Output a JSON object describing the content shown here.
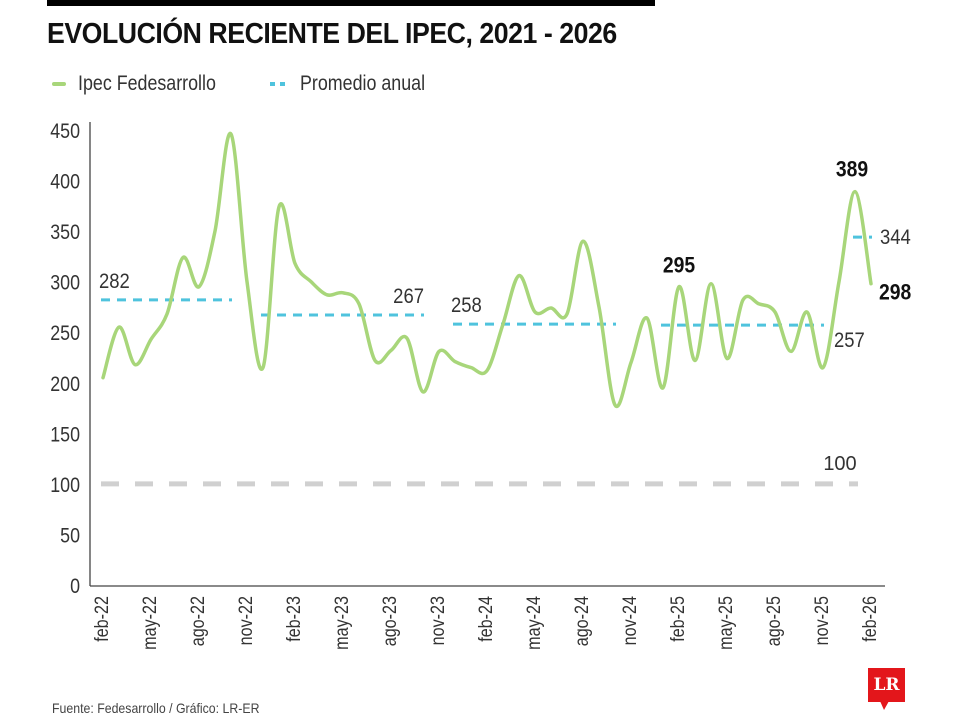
{
  "title": "EVOLUCIÓN RECIENTE DEL IPEC, 2021 - 2026",
  "legend": [
    {
      "label": "Ipec Fedesarrollo",
      "style": "solid",
      "color": "#a8d67a"
    },
    {
      "label": "Promedio anual",
      "style": "dashed",
      "color": "#4fc3dd"
    }
  ],
  "footer": "Fuente: Fedesarrollo / Gráfico: LR-ER",
  "logo": "LR",
  "colors": {
    "series": "#a8d67a",
    "average": "#4fc3dd",
    "reference": "#d0d0d0",
    "logo": "#e3161b"
  },
  "chart_data": {
    "type": "line",
    "title": "EVOLUCIÓN RECIENTE DEL IPEC, 2021 - 2026",
    "xlabel": "",
    "ylabel": "",
    "ylim": [
      0,
      450
    ],
    "yticks": [
      0,
      50,
      100,
      150,
      200,
      250,
      300,
      350,
      400,
      450
    ],
    "grid": false,
    "legend_position": "top-left",
    "xtick_labels": [
      "feb-22",
      "may-22",
      "ago-22",
      "nov-22",
      "feb-23",
      "may-23",
      "ago-23",
      "nov-23",
      "feb-24",
      "may-24",
      "ago-24",
      "nov-24",
      "feb-25",
      "may-25",
      "ago-25",
      "nov-25",
      "feb-26"
    ],
    "xtick_every_months": 3,
    "x": [
      "feb-22",
      "mar-22",
      "abr-22",
      "may-22",
      "jun-22",
      "jul-22",
      "ago-22",
      "sep-22",
      "oct-22",
      "nov-22",
      "dic-22",
      "ene-23",
      "feb-23",
      "mar-23",
      "abr-23",
      "may-23",
      "jun-23",
      "jul-23",
      "ago-23",
      "sep-23",
      "oct-23",
      "nov-23",
      "dic-23",
      "ene-24",
      "feb-24",
      "mar-24",
      "abr-24",
      "may-24",
      "jun-24",
      "jul-24",
      "ago-24",
      "sep-24",
      "oct-24",
      "nov-24",
      "dic-24",
      "ene-25",
      "feb-25",
      "mar-25",
      "abr-25",
      "may-25",
      "jun-25",
      "jul-25",
      "ago-25",
      "sep-25",
      "oct-25",
      "nov-25",
      "dic-25",
      "ene-26",
      "feb-26"
    ],
    "series": [
      {
        "name": "Ipec Fedesarrollo",
        "values": [
          205,
          255,
          218,
          243,
          268,
          324,
          295,
          350,
          446,
          300,
          215,
          374,
          318,
          300,
          287,
          289,
          278,
          222,
          232,
          244,
          191,
          231,
          221,
          215,
          212,
          258,
          306,
          270,
          274,
          268,
          340,
          275,
          178,
          220,
          264,
          195,
          295,
          222,
          298,
          224,
          282,
          278,
          270,
          231,
          270,
          215,
          300,
          389,
          298
        ]
      }
    ],
    "annual_averages": [
      {
        "label": "282",
        "value": 282,
        "from": "feb-22",
        "to": "oct-22"
      },
      {
        "label": "267",
        "value": 267,
        "from": "dic-22",
        "to": "oct-23"
      },
      {
        "label": "258",
        "value": 258,
        "from": "dic-23",
        "to": "oct-24"
      },
      {
        "label": "257",
        "value": 257,
        "from": "ene-25",
        "to": "nov-25"
      },
      {
        "label": "344",
        "value": 344,
        "from": "ene-26",
        "to": "feb-26"
      }
    ],
    "reference_line": {
      "label": "100",
      "value": 100
    },
    "annotations": [
      {
        "label": "295",
        "at": "feb-25",
        "value": 295,
        "bold": true
      },
      {
        "label": "389",
        "at": "ene-26",
        "value": 389,
        "bold": true
      },
      {
        "label": "298",
        "at": "feb-26",
        "value": 298,
        "bold": true
      }
    ]
  }
}
